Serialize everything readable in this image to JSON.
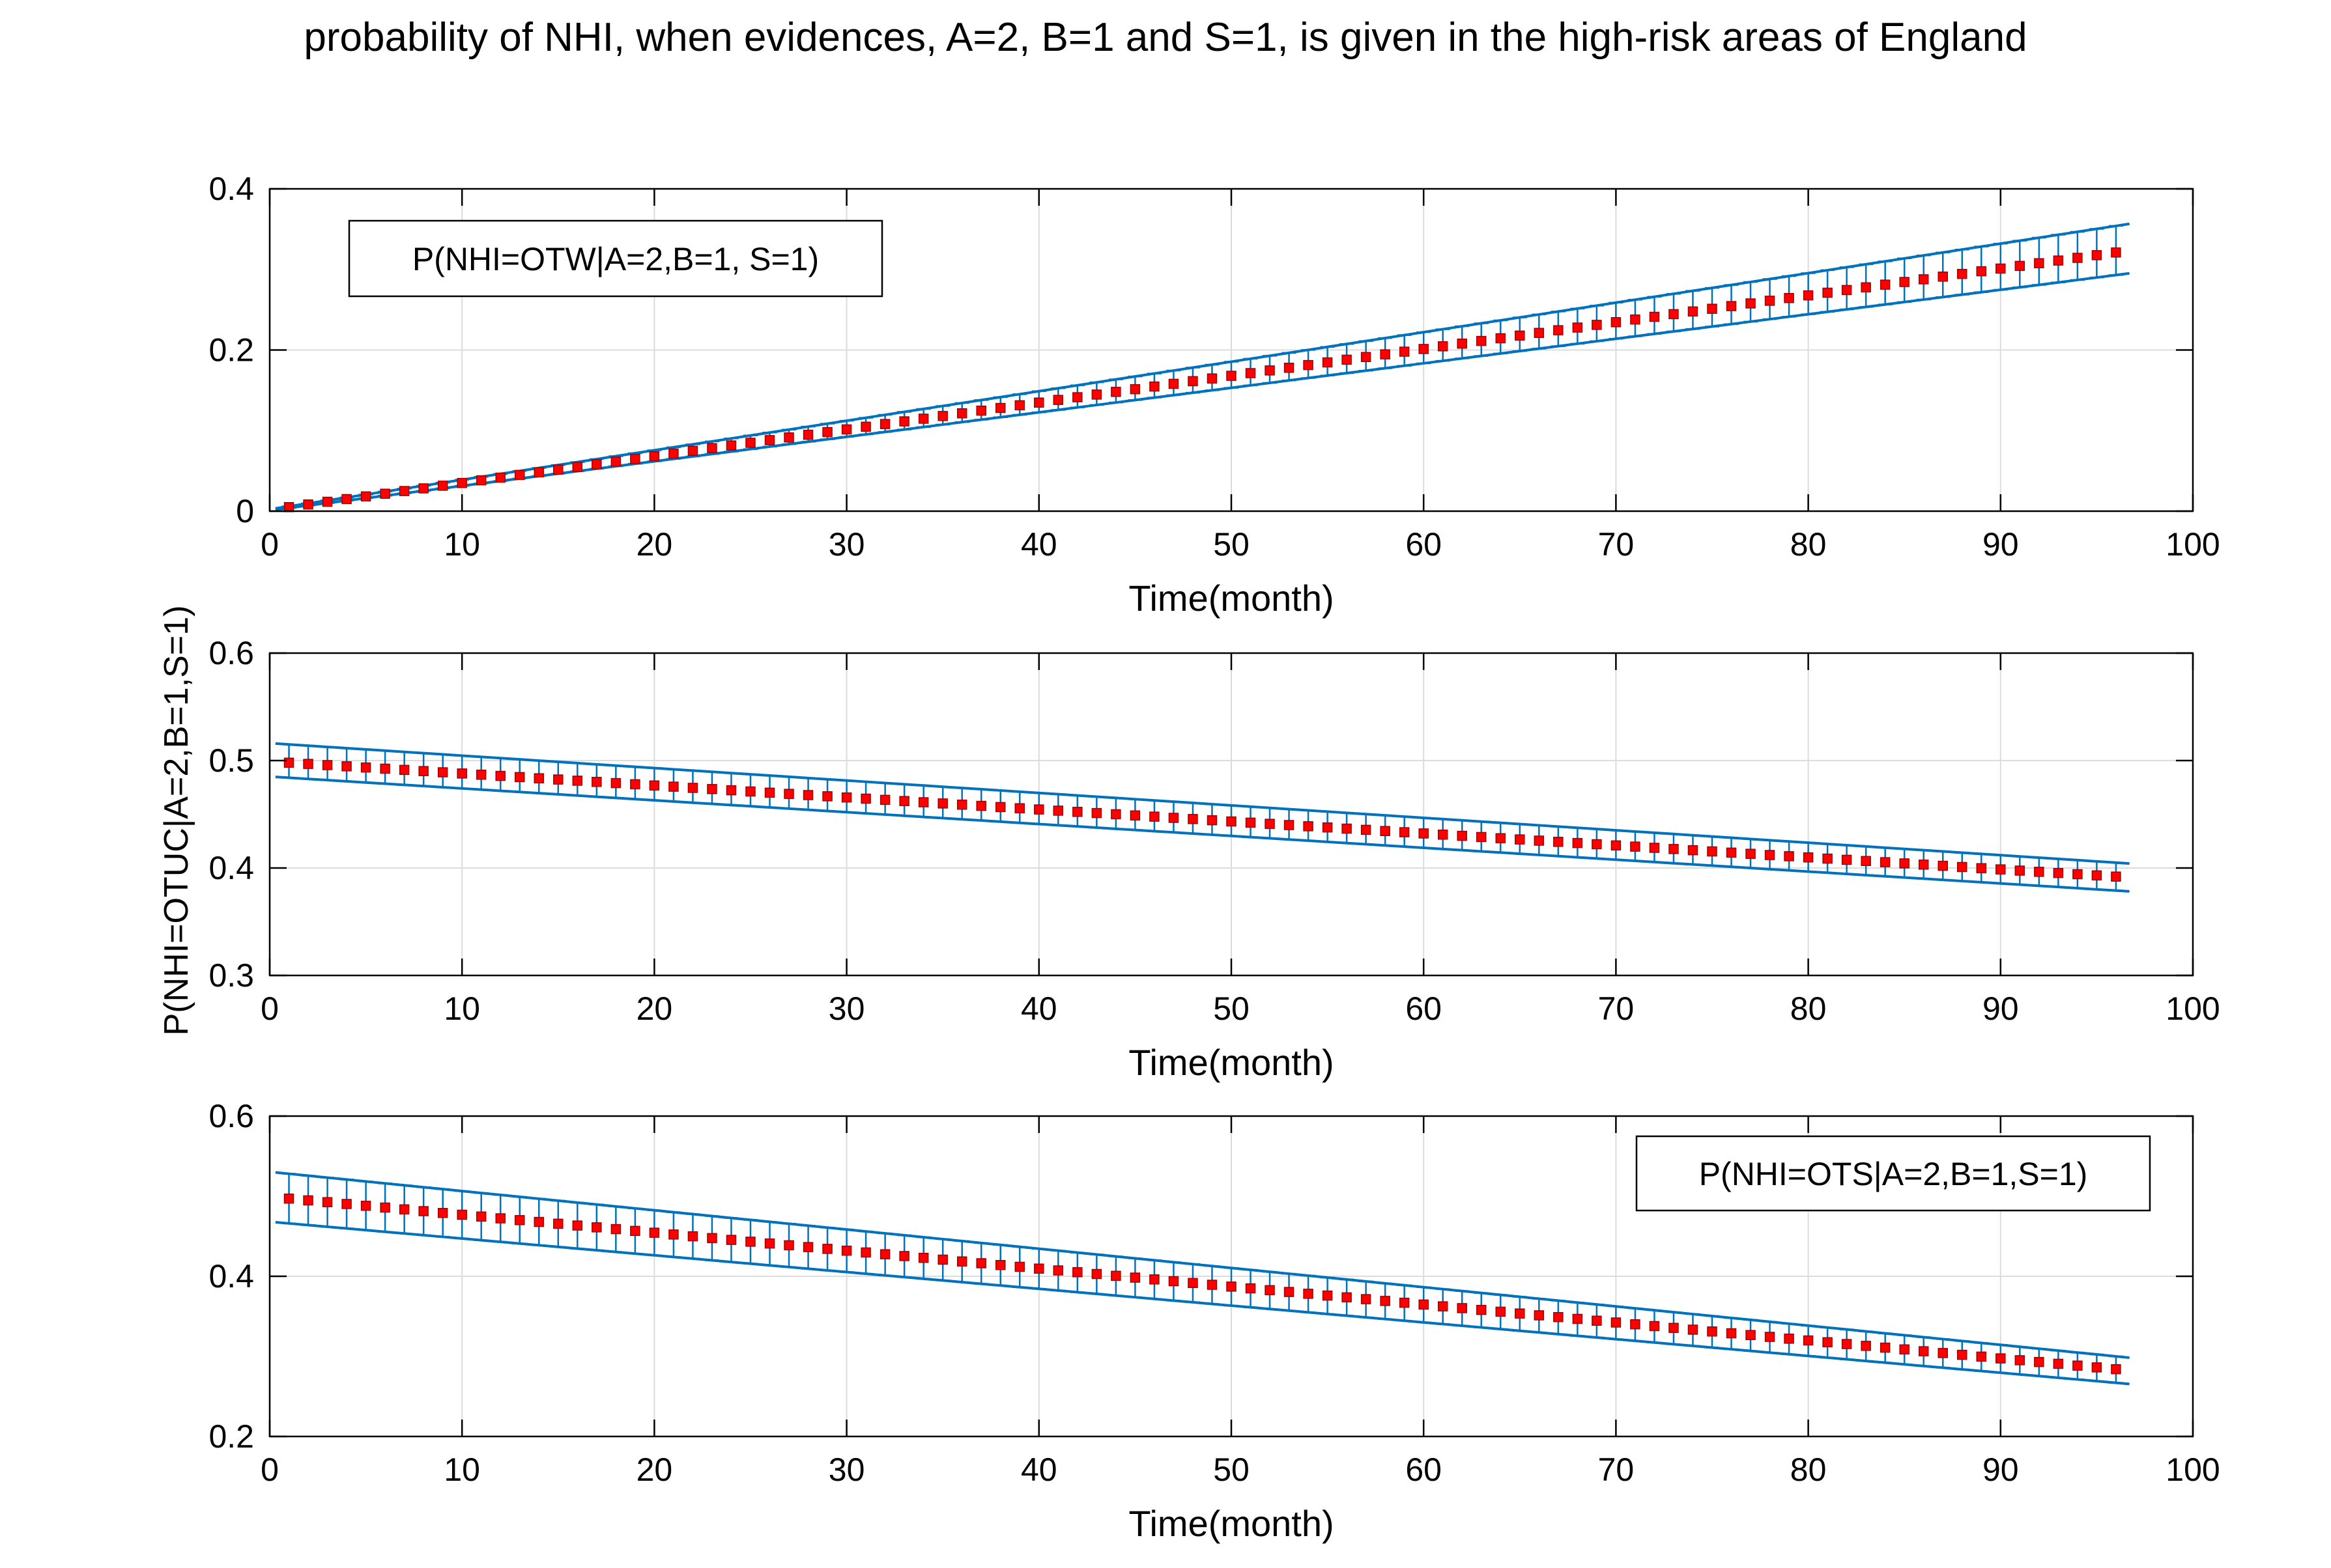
{
  "figure": {
    "title": "probability of NHI, when evidences, A=2, B=1 and S=1, is given in the high-risk areas of England",
    "shared_ylabel": "P(NHI=OTUC|A=2,B=1,S=1)"
  },
  "colors": {
    "mean_marker": "#ff0000",
    "mean_marker_edge": "#a00000",
    "error_bar": "#0072bd",
    "grid": "#dcdcdc",
    "axis": "#000000"
  },
  "chart_data": [
    {
      "type": "line",
      "title": "",
      "xlabel": "Time(month)",
      "ylabel": "",
      "xlim": [
        0,
        100
      ],
      "ylim": [
        0,
        0.4
      ],
      "xticks": [
        "0",
        "10",
        "20",
        "30",
        "40",
        "50",
        "60",
        "70",
        "80",
        "90",
        "100"
      ],
      "yticks": [
        "0",
        "0.2",
        "0.4"
      ],
      "grid": true,
      "legend": {
        "text": "P(NHI=OTW|A=2,B=1, S=1)",
        "placement": "top-left"
      },
      "x": {
        "start": 1,
        "end": 96,
        "step": 1
      },
      "series": [
        {
          "name": "mean",
          "start_value": 0.005,
          "end_value": 0.321,
          "style": "red square markers, dotted"
        },
        {
          "name": "upper bound",
          "start_value": 0.006,
          "end_value": 0.354,
          "style": "blue line"
        },
        {
          "name": "lower bound",
          "start_value": 0.004,
          "end_value": 0.293,
          "style": "blue line"
        }
      ]
    },
    {
      "type": "line",
      "title": "",
      "xlabel": "Time(month)",
      "ylabel": "",
      "xlim": [
        0,
        100
      ],
      "ylim": [
        0.3,
        0.6
      ],
      "xticks": [
        "0",
        "10",
        "20",
        "30",
        "40",
        "50",
        "60",
        "70",
        "80",
        "90",
        "100"
      ],
      "yticks": [
        "0.3",
        "0.4",
        "0.5",
        "0.6"
      ],
      "grid": true,
      "legend": null,
      "x": {
        "start": 1,
        "end": 96,
        "step": 1
      },
      "series": [
        {
          "name": "mean",
          "start_value": 0.498,
          "end_value": 0.392,
          "style": "red square markers, dotted"
        },
        {
          "name": "upper bound",
          "start_value": 0.515,
          "end_value": 0.405,
          "style": "blue line"
        },
        {
          "name": "lower bound",
          "start_value": 0.484,
          "end_value": 0.379,
          "style": "blue line"
        }
      ]
    },
    {
      "type": "line",
      "title": "",
      "xlabel": "Time(month)",
      "ylabel": "",
      "xlim": [
        0,
        100
      ],
      "ylim": [
        0.2,
        0.6
      ],
      "xticks": [
        "0",
        "10",
        "20",
        "30",
        "40",
        "50",
        "60",
        "70",
        "80",
        "90",
        "100"
      ],
      "yticks": [
        "0.2",
        "0.4",
        "0.6"
      ],
      "grid": true,
      "legend": {
        "text": "P(NHI=OTS|A=2,B=1,S=1)",
        "placement": "top-right"
      },
      "x": {
        "start": 1,
        "end": 96,
        "step": 1
      },
      "series": [
        {
          "name": "mean",
          "start_value": 0.497,
          "end_value": 0.284,
          "style": "red square markers, dotted"
        },
        {
          "name": "upper bound",
          "start_value": 0.528,
          "end_value": 0.3,
          "style": "blue line"
        },
        {
          "name": "lower bound",
          "start_value": 0.466,
          "end_value": 0.267,
          "style": "blue line"
        }
      ]
    }
  ]
}
